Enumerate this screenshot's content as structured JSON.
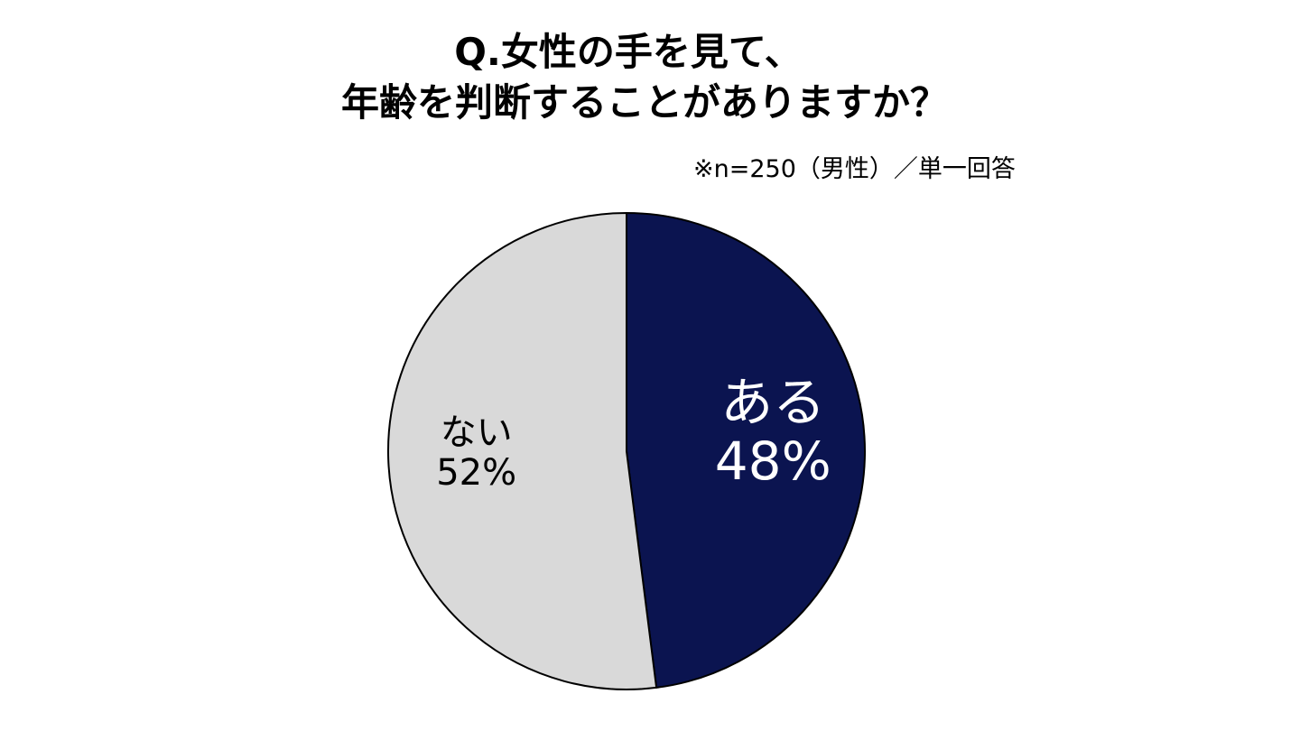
{
  "chart": {
    "title_line1": "Q.女性の手を見て、",
    "title_line2": "年齢を判断することがありますか？",
    "note": "※n=250（男性）／単一回答"
  },
  "chart_data": {
    "type": "pie",
    "title": "Q.女性の手を見て、年齢を判断することがありますか？",
    "subtitle": "※n=250（男性）／単一回答",
    "slices": [
      {
        "label": "ある",
        "value": 48,
        "display": "48%",
        "color": "#0b1450",
        "text_color": "#ffffff"
      },
      {
        "label": "ない",
        "value": 52,
        "display": "52%",
        "color": "#d9d9d9",
        "text_color": "#000000"
      }
    ],
    "start_angle": "12 o'clock",
    "direction": "clockwise",
    "legend": "none"
  }
}
